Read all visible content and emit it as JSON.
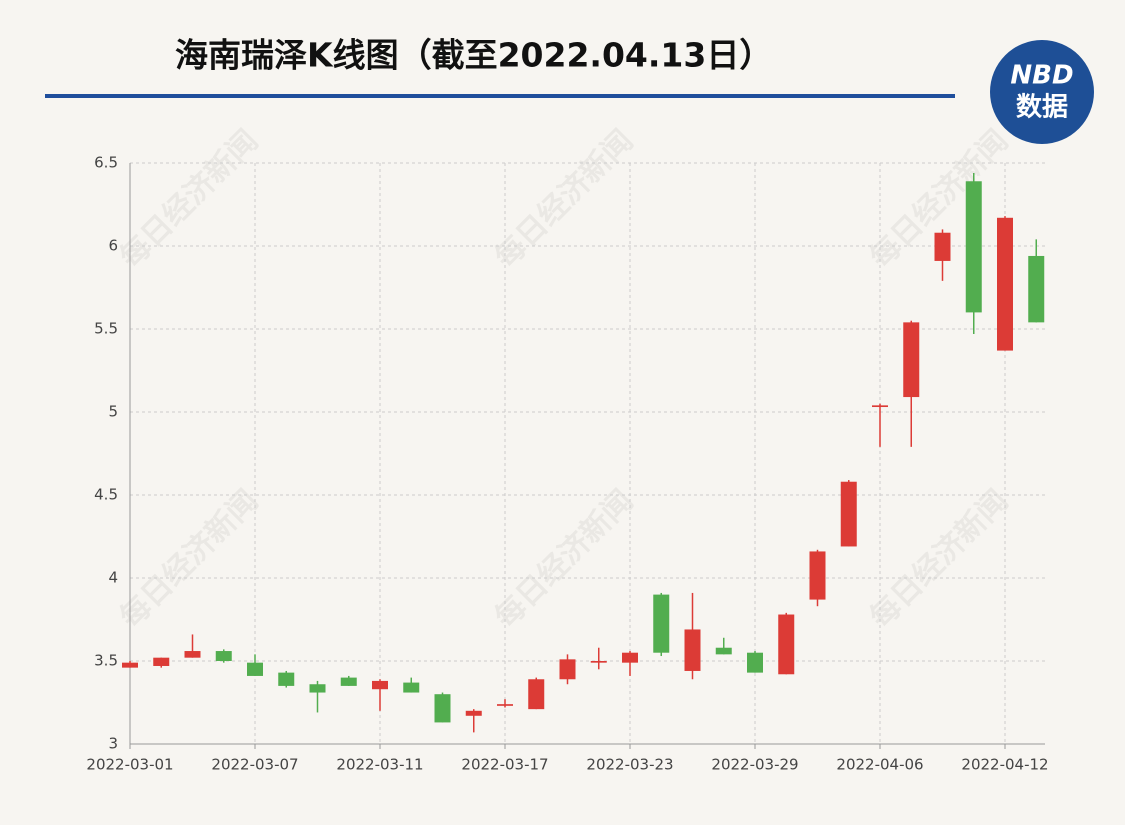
{
  "chart_data": {
    "type": "candlestick",
    "title": "海南瑞泽K线图（截至2022.04.13日）",
    "logo": {
      "top": "NBD",
      "bottom": "数据"
    },
    "watermark": "每日经济新闻",
    "categories": [
      "2022-03-01",
      null,
      null,
      null,
      "2022-03-07",
      null,
      null,
      null,
      "2022-03-11",
      null,
      null,
      null,
      "2022-03-17",
      null,
      null,
      null,
      "2022-03-23",
      null,
      null,
      null,
      "2022-03-29",
      null,
      null,
      null,
      "2022-04-06",
      null,
      null,
      null,
      "2022-04-12",
      null
    ],
    "open": [
      3.46,
      3.47,
      3.52,
      3.56,
      3.49,
      3.43,
      3.36,
      3.4,
      3.33,
      3.37,
      3.3,
      3.17,
      3.23,
      3.21,
      3.39,
      3.49,
      3.49,
      3.9,
      3.44,
      3.58,
      3.55,
      3.42,
      3.87,
      4.19,
      5.03,
      5.09,
      5.91,
      6.39,
      5.37,
      5.94
    ],
    "high": [
      3.5,
      3.52,
      3.66,
      3.57,
      3.54,
      3.44,
      3.38,
      3.41,
      3.39,
      3.4,
      3.31,
      3.21,
      3.27,
      3.4,
      3.54,
      3.58,
      3.56,
      3.91,
      3.91,
      3.64,
      3.56,
      3.79,
      4.17,
      4.59,
      5.05,
      5.55,
      6.1,
      6.44,
      6.18,
      6.04
    ],
    "low": [
      3.46,
      3.46,
      3.52,
      3.49,
      3.41,
      3.34,
      3.19,
      3.35,
      3.2,
      3.31,
      3.13,
      3.07,
      3.22,
      3.21,
      3.36,
      3.45,
      3.41,
      3.53,
      3.39,
      3.54,
      3.43,
      3.42,
      3.83,
      4.19,
      4.79,
      4.79,
      5.79,
      5.47,
      5.37,
      5.54
    ],
    "close": [
      3.49,
      3.52,
      3.56,
      3.5,
      3.41,
      3.35,
      3.31,
      3.35,
      3.38,
      3.31,
      3.13,
      3.2,
      3.24,
      3.39,
      3.51,
      3.5,
      3.55,
      3.55,
      3.69,
      3.54,
      3.43,
      3.78,
      4.16,
      4.58,
      5.04,
      5.54,
      6.08,
      5.6,
      6.17,
      5.54
    ],
    "up_color": "#dc3b36",
    "down_color": "#52ad4f",
    "ylim": [
      3,
      6.5
    ],
    "yticks": [
      3,
      3.5,
      4,
      4.5,
      5,
      5.5,
      6,
      6.5
    ],
    "grid": true
  }
}
